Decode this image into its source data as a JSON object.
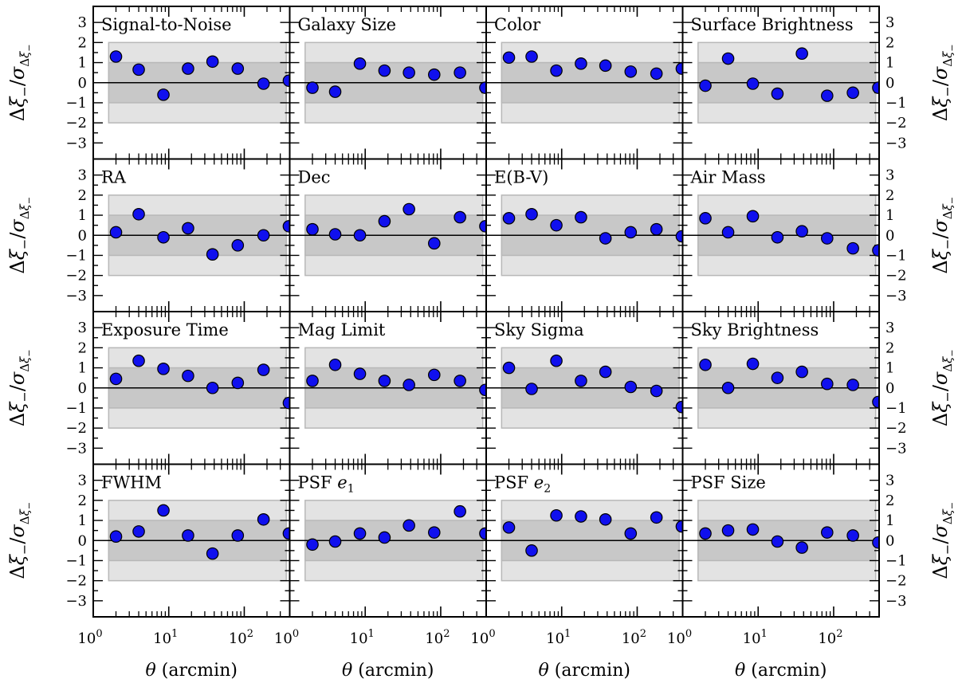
{
  "chart_data": {
    "type": "scatter",
    "layout": "4x4 grid of panels sharing axes",
    "xlabel": "θ (arcmin)",
    "ylabel": "Δξ−/σΔξ−",
    "x_scale": "log",
    "xlim": [
      1,
      400
    ],
    "ylim": [
      -3.8,
      3.8
    ],
    "x_ticks": [
      1,
      10,
      100
    ],
    "x_tick_labels": [
      "10^0",
      "10^1",
      "10^2"
    ],
    "y_ticks": [
      -3,
      -2,
      -1,
      0,
      1,
      2,
      3
    ],
    "y_tick_labels": [
      "−3",
      "−2",
      "−1",
      "0",
      "1",
      "2",
      "3"
    ],
    "x": [
      2.0,
      4.0,
      8.5,
      18.0,
      38.0,
      82.0,
      180.0,
      390.0
    ],
    "bands": [
      {
        "range": [
          -2,
          2
        ],
        "color": "#e3e3e3",
        "x_from": 1.6,
        "x_to": 360
      },
      {
        "range": [
          -1,
          1
        ],
        "color": "#c8c8c8",
        "x_from": 1.6,
        "x_to": 360
      }
    ],
    "reference_line": 0,
    "marker_color": "#1010ee",
    "marker_edge": "#000000",
    "panels": [
      {
        "title": "Signal-to-Noise",
        "values": [
          1.3,
          0.65,
          -0.6,
          0.7,
          1.05,
          0.7,
          -0.05,
          0.1
        ]
      },
      {
        "title": "Galaxy Size",
        "values": [
          -0.25,
          -0.45,
          0.95,
          0.6,
          0.5,
          0.4,
          0.5,
          -0.25
        ]
      },
      {
        "title": "Color",
        "values": [
          1.25,
          1.3,
          0.6,
          0.95,
          0.85,
          0.55,
          0.45,
          0.7
        ]
      },
      {
        "title": "Surface Brightness",
        "values": [
          -0.15,
          1.2,
          -0.05,
          -0.55,
          1.45,
          -0.65,
          -0.5,
          -0.25
        ]
      },
      {
        "title": "RA",
        "values": [
          0.15,
          1.05,
          -0.1,
          0.35,
          -0.95,
          -0.5,
          0.0,
          0.45
        ]
      },
      {
        "title": "Dec",
        "values": [
          0.3,
          0.05,
          0.0,
          0.7,
          1.3,
          -0.4,
          0.9,
          0.45
        ]
      },
      {
        "title": "E(B-V)",
        "values": [
          0.85,
          1.05,
          0.5,
          0.9,
          -0.15,
          0.15,
          0.3,
          -0.05
        ]
      },
      {
        "title": "Air Mass",
        "values": [
          0.85,
          0.15,
          0.95,
          -0.1,
          0.2,
          -0.15,
          -0.65,
          -0.75
        ]
      },
      {
        "title": "Exposure Time",
        "values": [
          0.45,
          1.35,
          0.95,
          0.6,
          0.0,
          0.25,
          0.9,
          -0.75
        ]
      },
      {
        "title": "Mag Limit",
        "values": [
          0.35,
          1.15,
          0.7,
          0.35,
          0.15,
          0.65,
          0.35,
          -0.1
        ]
      },
      {
        "title": "Sky Sigma",
        "values": [
          1.0,
          -0.05,
          1.35,
          0.35,
          0.8,
          0.05,
          -0.15,
          -0.95
        ]
      },
      {
        "title": "Sky Brightness",
        "values": [
          1.15,
          0.0,
          1.2,
          0.5,
          0.8,
          0.2,
          0.15,
          -0.7
        ]
      },
      {
        "title": "FWHM",
        "values": [
          0.2,
          0.45,
          1.5,
          0.25,
          -0.65,
          0.25,
          1.05,
          0.35
        ]
      },
      {
        "title": "PSF",
        "title_math": "e1",
        "values": [
          -0.2,
          -0.05,
          0.35,
          0.15,
          0.75,
          0.4,
          1.45,
          0.35
        ]
      },
      {
        "title": "PSF",
        "title_math": "e2",
        "values": [
          0.65,
          -0.5,
          1.25,
          1.2,
          1.05,
          0.35,
          1.15,
          0.7
        ]
      },
      {
        "title": "PSF Size",
        "values": [
          0.35,
          0.5,
          0.55,
          -0.05,
          -0.35,
          0.4,
          0.25,
          -0.1
        ]
      }
    ]
  }
}
